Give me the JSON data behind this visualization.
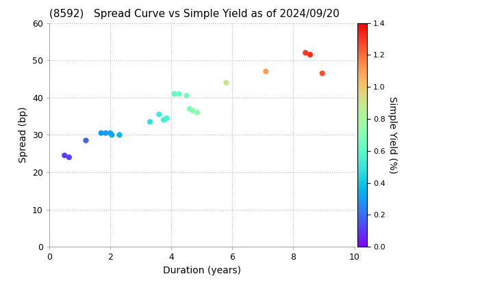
{
  "title": "(8592)   Spread Curve vs Simple Yield as of 2024/09/20",
  "xlabel": "Duration (years)",
  "ylabel": "Spread (bp)",
  "colorbar_label": "Simple Yield (%)",
  "xlim": [
    0,
    10
  ],
  "ylim": [
    0,
    60
  ],
  "xticks": [
    0,
    2,
    4,
    6,
    8,
    10
  ],
  "yticks": [
    0,
    10,
    20,
    30,
    40,
    50,
    60
  ],
  "colorbar_ticks": [
    0.0,
    0.2,
    0.4,
    0.6,
    0.8,
    1.0,
    1.2,
    1.4
  ],
  "colorbar_vmin": 0.0,
  "colorbar_vmax": 1.4,
  "points": [
    {
      "duration": 0.5,
      "spread": 24.5,
      "yield": 0.11
    },
    {
      "duration": 0.65,
      "spread": 24.0,
      "yield": 0.11
    },
    {
      "duration": 1.2,
      "spread": 28.5,
      "yield": 0.18
    },
    {
      "duration": 1.7,
      "spread": 30.5,
      "yield": 0.28
    },
    {
      "duration": 1.85,
      "spread": 30.5,
      "yield": 0.3
    },
    {
      "duration": 2.0,
      "spread": 30.5,
      "yield": 0.32
    },
    {
      "duration": 2.05,
      "spread": 30.0,
      "yield": 0.32
    },
    {
      "duration": 2.3,
      "spread": 30.0,
      "yield": 0.35
    },
    {
      "duration": 3.3,
      "spread": 33.5,
      "yield": 0.48
    },
    {
      "duration": 3.6,
      "spread": 35.5,
      "yield": 0.52
    },
    {
      "duration": 3.75,
      "spread": 34.0,
      "yield": 0.54
    },
    {
      "duration": 3.85,
      "spread": 34.5,
      "yield": 0.55
    },
    {
      "duration": 4.1,
      "spread": 41.0,
      "yield": 0.62
    },
    {
      "duration": 4.25,
      "spread": 41.0,
      "yield": 0.64
    },
    {
      "duration": 4.5,
      "spread": 40.5,
      "yield": 0.68
    },
    {
      "duration": 4.6,
      "spread": 37.0,
      "yield": 0.7
    },
    {
      "duration": 4.7,
      "spread": 36.5,
      "yield": 0.72
    },
    {
      "duration": 4.85,
      "spread": 36.0,
      "yield": 0.74
    },
    {
      "duration": 5.8,
      "spread": 44.0,
      "yield": 0.9
    },
    {
      "duration": 7.1,
      "spread": 47.0,
      "yield": 1.1
    },
    {
      "duration": 8.4,
      "spread": 52.0,
      "yield": 1.3
    },
    {
      "duration": 8.55,
      "spread": 51.5,
      "yield": 1.32
    },
    {
      "duration": 8.95,
      "spread": 46.5,
      "yield": 1.25
    }
  ],
  "marker_size": 35,
  "background_color": "#ffffff",
  "grid_color": "#bbbbbb",
  "title_fontsize": 11,
  "axis_fontsize": 10,
  "colormap": "rainbow"
}
